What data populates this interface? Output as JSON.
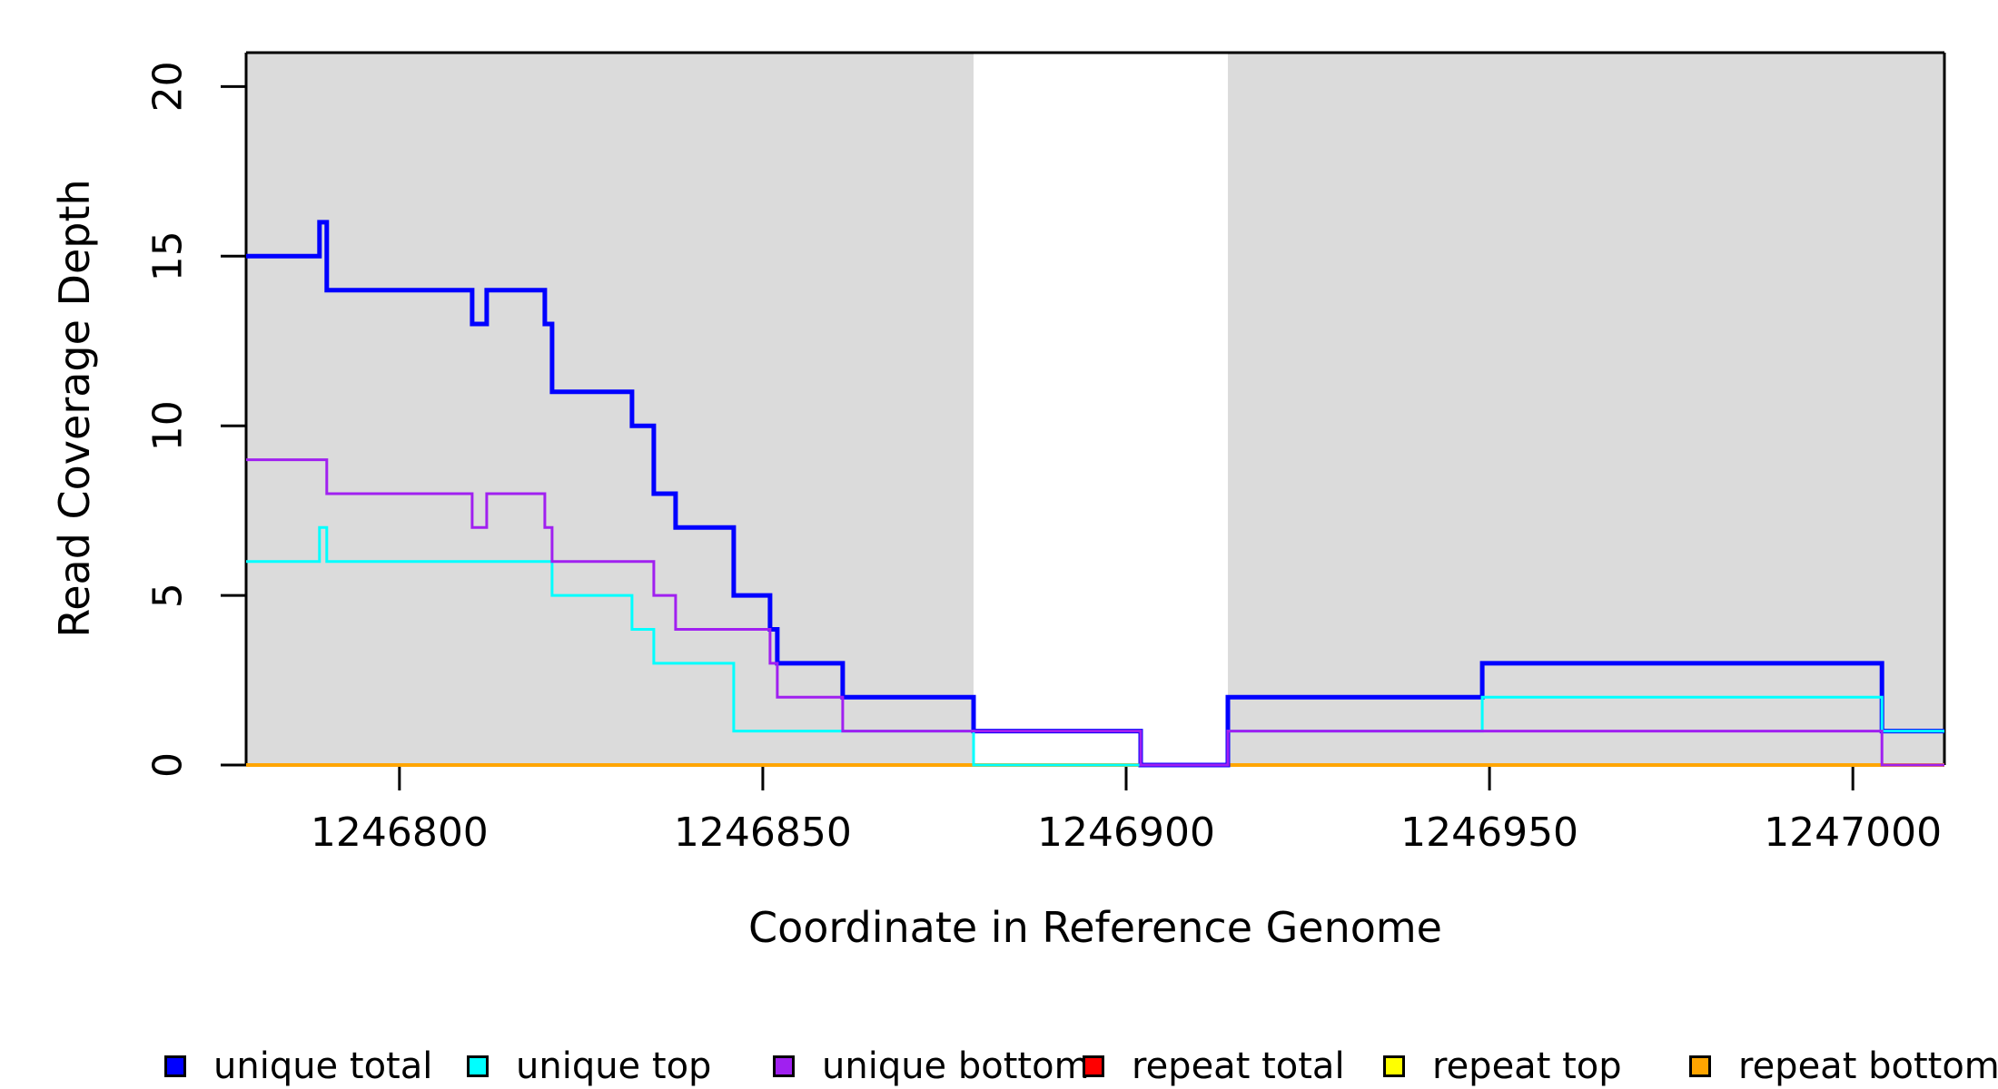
{
  "page": {
    "background": "#ffffff"
  },
  "chart_data": {
    "type": "line",
    "subtype": "step-post",
    "title": "",
    "xlabel": "Coordinate in Reference Genome",
    "ylabel": "Read Coverage Depth",
    "xlim": [
      1246778.9,
      1247012.6
    ],
    "ylim": [
      0,
      21
    ],
    "grid": false,
    "legend_position": "bottom",
    "xticks": [
      1246800,
      1246850,
      1246900,
      1246950,
      1247000
    ],
    "yticks": [
      0,
      5,
      10,
      15,
      20
    ],
    "shade_color": "#DBDBDB",
    "shaded_regions": [
      {
        "x0": 1246778.9,
        "x1": 1246879
      },
      {
        "x0": 1246914,
        "x1": 1247012.6
      }
    ],
    "series": [
      {
        "name": "repeat total",
        "color": "#FF0000",
        "width": 3,
        "points": [
          [
            1246778.9,
            0
          ],
          [
            1247012.6,
            0
          ]
        ]
      },
      {
        "name": "repeat top",
        "color": "#FFFF00",
        "width": 3,
        "points": [
          [
            1246778.9,
            0
          ],
          [
            1247012.6,
            0
          ]
        ]
      },
      {
        "name": "repeat bottom",
        "color": "#FFA500",
        "width": 4,
        "points": [
          [
            1246778.9,
            0
          ],
          [
            1247012.6,
            0
          ]
        ]
      },
      {
        "name": "unique total",
        "color": "#0000FF",
        "width": 5,
        "points": [
          [
            1246778.9,
            15
          ],
          [
            1246789,
            16
          ],
          [
            1246790,
            14
          ],
          [
            1246810,
            13
          ],
          [
            1246812,
            14
          ],
          [
            1246820,
            13
          ],
          [
            1246821,
            11
          ],
          [
            1246832,
            10
          ],
          [
            1246835,
            8
          ],
          [
            1246838,
            7
          ],
          [
            1246846,
            5
          ],
          [
            1246851,
            4
          ],
          [
            1246852,
            3
          ],
          [
            1246861,
            2
          ],
          [
            1246879,
            1
          ],
          [
            1246902,
            0
          ],
          [
            1246914,
            2
          ],
          [
            1246949,
            3
          ],
          [
            1247004,
            1
          ],
          [
            1247012.6,
            1
          ]
        ]
      },
      {
        "name": "unique top",
        "color": "#00FFFF",
        "width": 3,
        "points": [
          [
            1246778.9,
            6
          ],
          [
            1246789,
            7
          ],
          [
            1246790,
            6
          ],
          [
            1246821,
            5
          ],
          [
            1246832,
            4
          ],
          [
            1246835,
            3
          ],
          [
            1246846,
            1
          ],
          [
            1246879,
            0
          ],
          [
            1246914,
            1
          ],
          [
            1246949,
            2
          ],
          [
            1247004,
            1
          ],
          [
            1247012.6,
            1
          ]
        ]
      },
      {
        "name": "unique bottom",
        "color": "#A020F0",
        "width": 3,
        "points": [
          [
            1246778.9,
            9
          ],
          [
            1246790,
            8
          ],
          [
            1246810,
            7
          ],
          [
            1246812,
            8
          ],
          [
            1246820,
            7
          ],
          [
            1246821,
            6
          ],
          [
            1246835,
            5
          ],
          [
            1246838,
            4
          ],
          [
            1246851,
            3
          ],
          [
            1246852,
            2
          ],
          [
            1246861,
            1
          ],
          [
            1246902,
            0
          ],
          [
            1246914,
            1
          ],
          [
            1247004,
            0
          ],
          [
            1247012.6,
            0
          ]
        ]
      }
    ],
    "legend": [
      {
        "label": "unique total",
        "color": "#0000FF"
      },
      {
        "label": "unique top",
        "color": "#00FFFF"
      },
      {
        "label": "unique bottom",
        "color": "#A020F0"
      },
      {
        "label": "repeat total",
        "color": "#FF0000"
      },
      {
        "label": "repeat top",
        "color": "#FFFF00"
      },
      {
        "label": "repeat bottom",
        "color": "#FFA500"
      }
    ]
  }
}
